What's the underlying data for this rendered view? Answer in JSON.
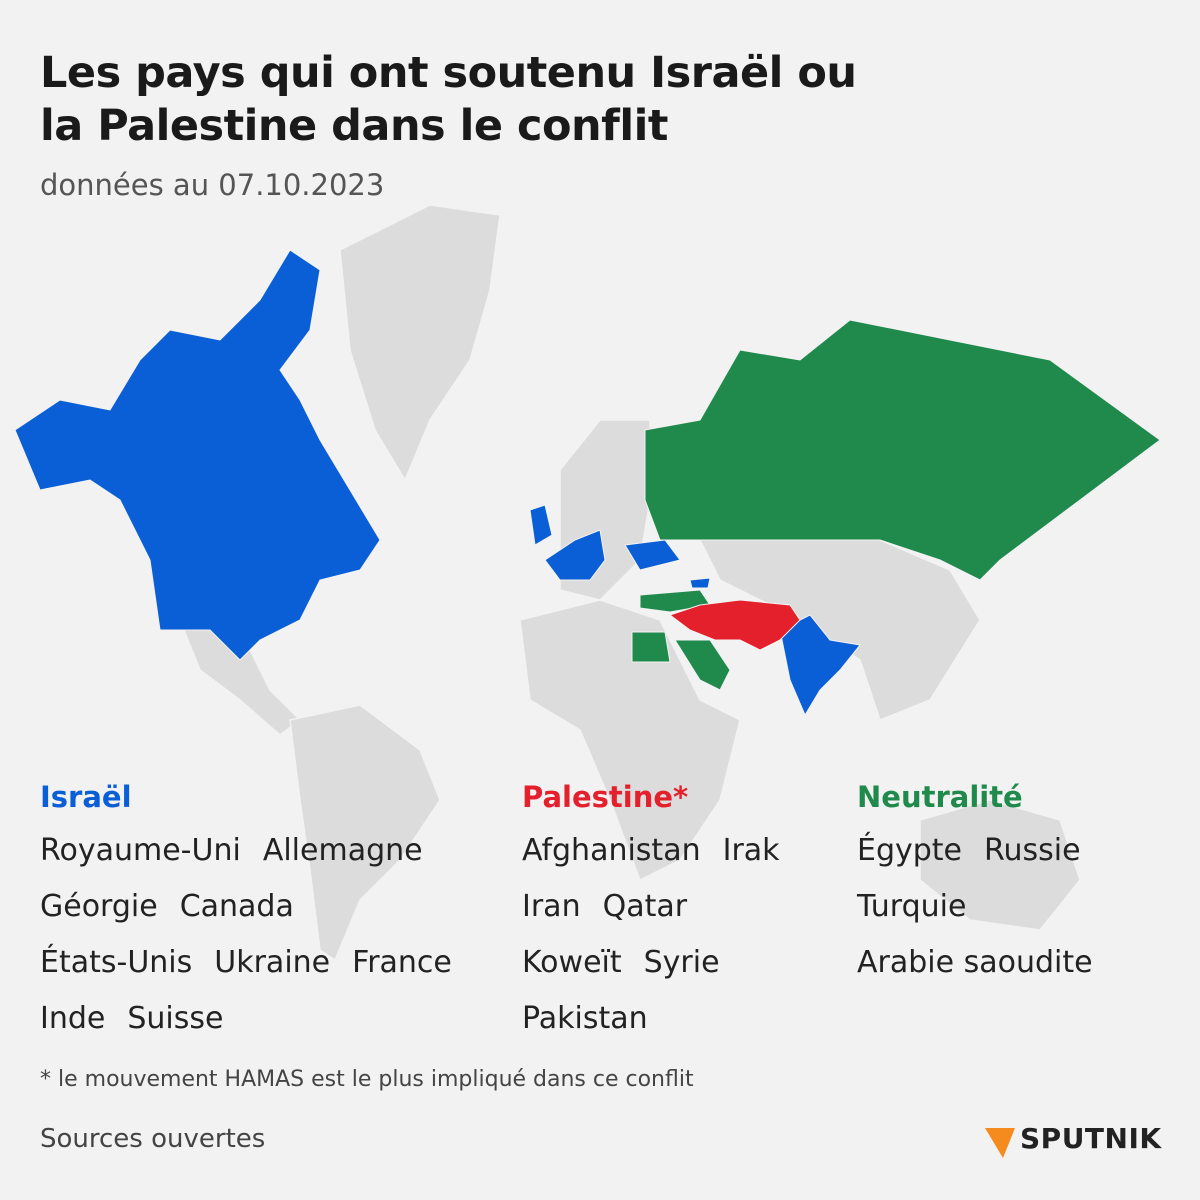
{
  "header": {
    "title_lines": [
      "Les pays qui ont soutenu Israël ou",
      "la Palestine dans le conflit"
    ],
    "subtitle": "données au 07.10.2023"
  },
  "groups": [
    {
      "heading": "Israël",
      "color": "#0a5fd6",
      "rows": [
        [
          "Royaume-Uni",
          "Allemagne"
        ],
        [
          "Géorgie",
          "Canada"
        ],
        [
          "États-Unis",
          "Ukraine",
          "France"
        ],
        [
          "Inde",
          "Suisse"
        ]
      ]
    },
    {
      "heading": "Palestine*",
      "color": "#e3202b",
      "rows": [
        [
          "Afghanistan",
          "Irak"
        ],
        [
          "Iran",
          "Qatar"
        ],
        [
          "Koweït",
          "Syrie"
        ],
        [
          "Pakistan"
        ]
      ]
    },
    {
      "heading": "Neutralité",
      "color": "#1f8a4c",
      "rows": [
        [
          "Égypte",
          "Russie"
        ],
        [
          "Turquie"
        ],
        [
          "Arabie saoudite"
        ]
      ]
    }
  ],
  "footnote": "* le mouvement HAMAS est le plus impliqué dans ce conflit",
  "source": "Sources ouvertes",
  "logo": "SPUTNIK"
}
